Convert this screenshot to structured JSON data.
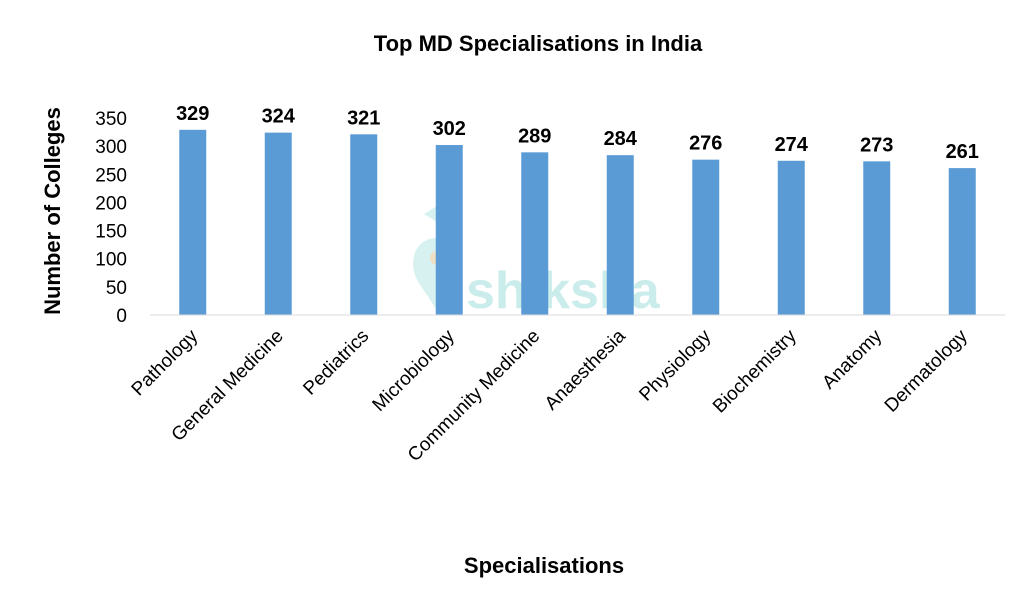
{
  "chart_data": {
    "type": "bar",
    "title": "Top MD Specialisations in India",
    "xlabel": "Specialisations",
    "ylabel": "Number of Colleges",
    "categories": [
      "Pathology",
      "General Medicine",
      "Pediatrics",
      "Microbiology",
      "Community Medicine",
      "Anaesthesia",
      "Physiology",
      "Biochemistry",
      "Anatomy",
      "Dermatology"
    ],
    "values": [
      329,
      324,
      321,
      302,
      289,
      284,
      276,
      274,
      273,
      261
    ],
    "ylim": [
      0,
      350
    ],
    "yticks": [
      0,
      50,
      100,
      150,
      200,
      250,
      300,
      350
    ],
    "grid": false,
    "legend": "none",
    "bar_color": "#5b9bd5",
    "data_labels": true
  },
  "watermark": {
    "text": "shiksha",
    "color": "#b9e6e4"
  }
}
